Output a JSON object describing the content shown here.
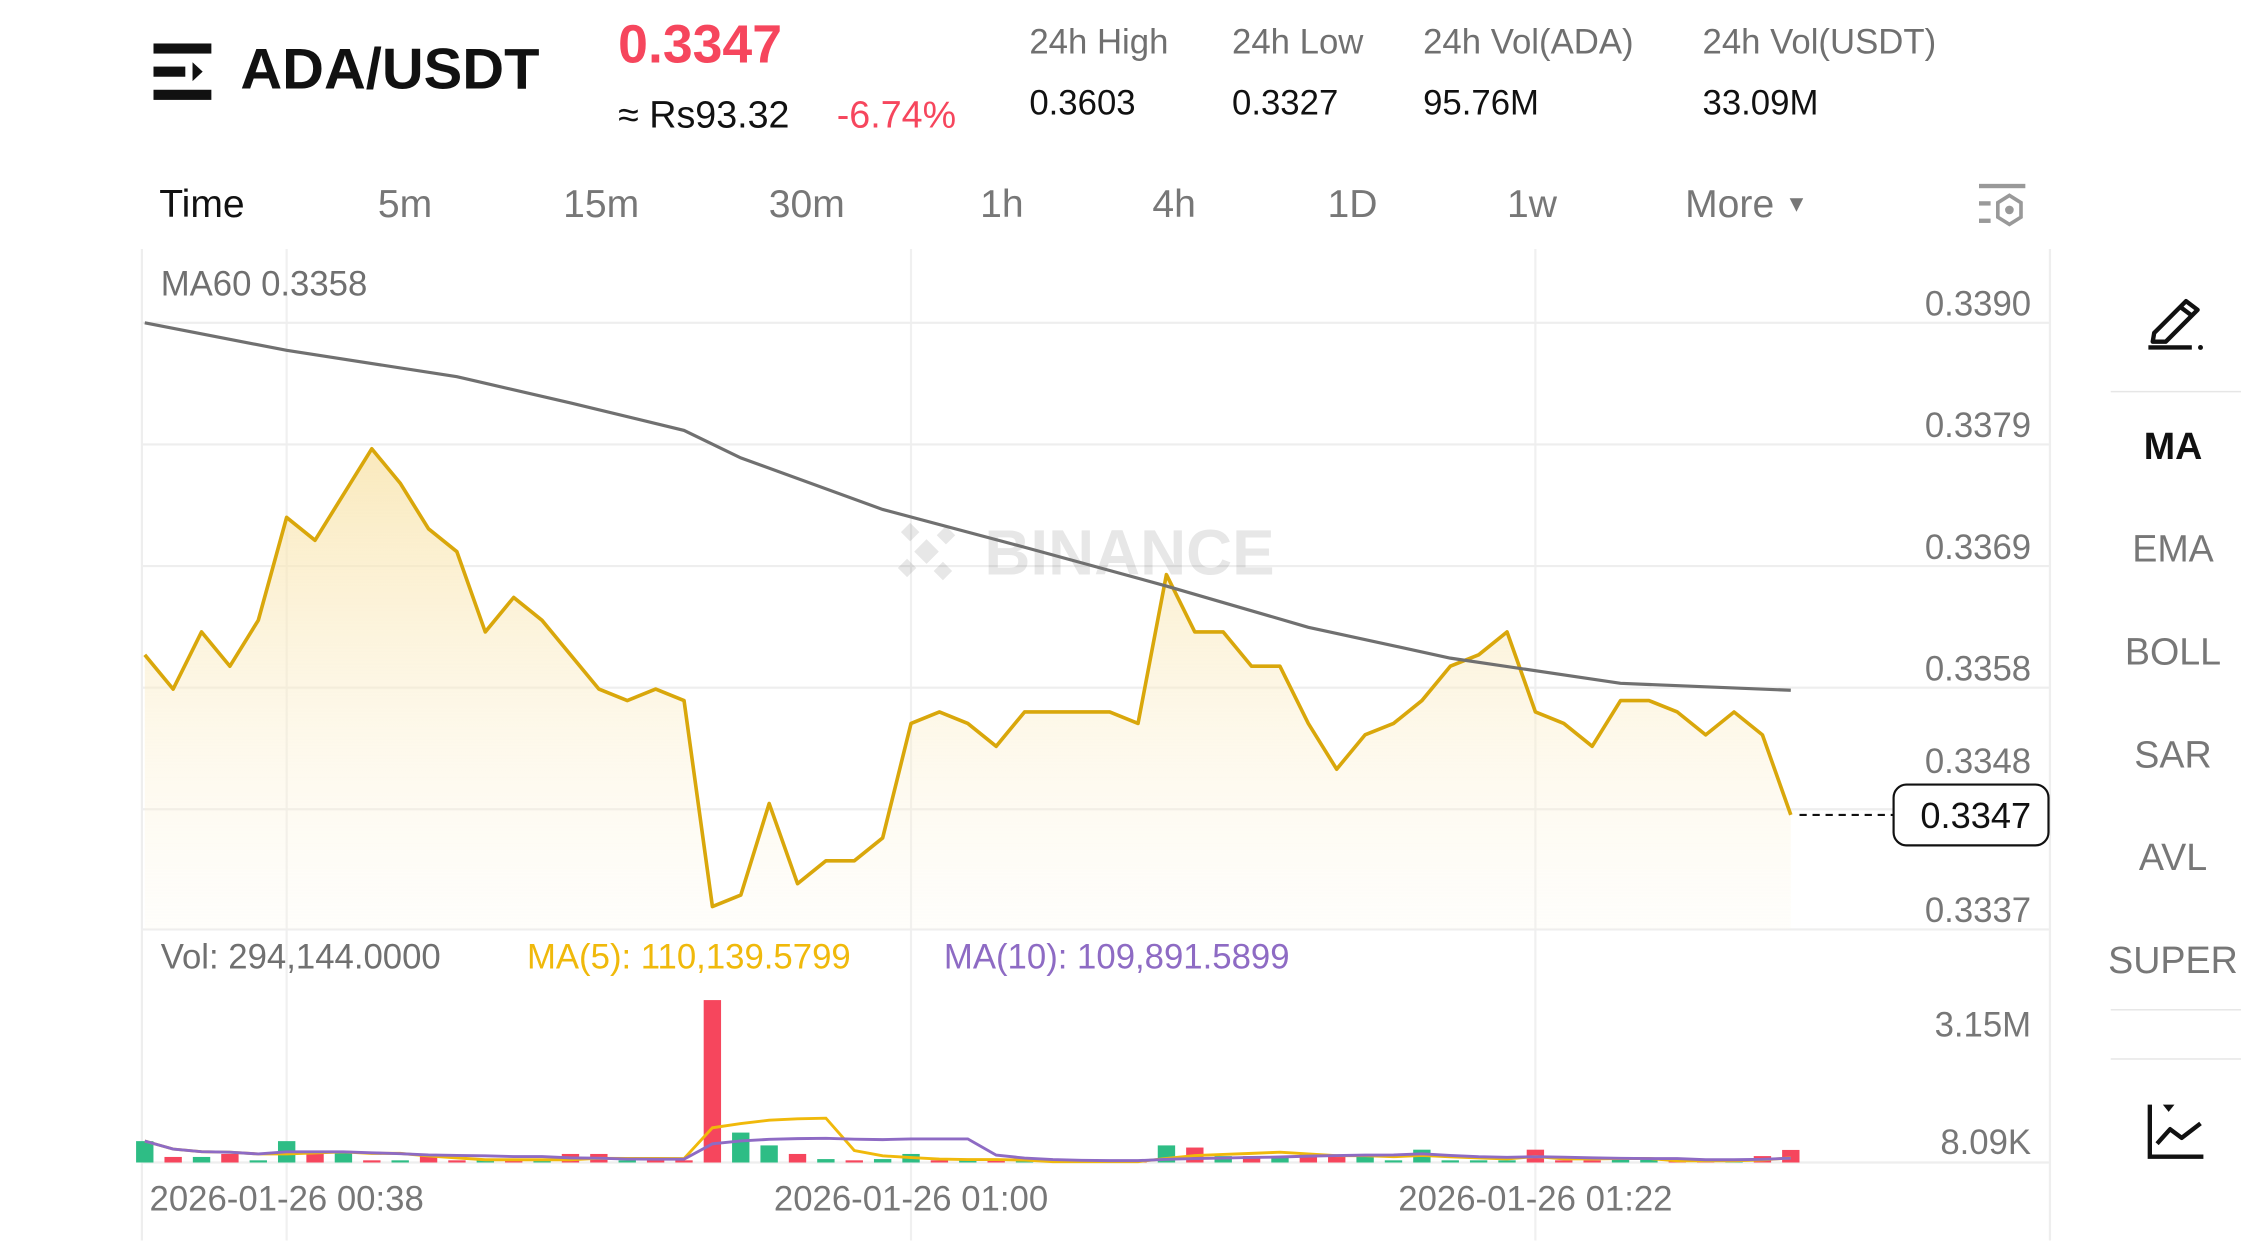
{
  "header": {
    "menu_icon": "menu-arrow-icon",
    "pair": "ADA/USDT",
    "last_price": "0.3347",
    "fiat_price": "≈ Rs93.32",
    "change_pct": "-6.74%",
    "stats": [
      {
        "label": "24h High",
        "value": "0.3603"
      },
      {
        "label": "24h Low",
        "value": "0.3327"
      },
      {
        "label": "24h Vol(ADA)",
        "value": "95.76M"
      },
      {
        "label": "24h Vol(USDT)",
        "value": "33.09M"
      }
    ]
  },
  "intervals": {
    "items": [
      "Time",
      "5m",
      "15m",
      "30m",
      "1h",
      "4h",
      "1D",
      "1w",
      "More"
    ],
    "active": "Time",
    "settings_icon": "chart-settings-icon"
  },
  "indicators": {
    "draw_icon": "pencil-icon",
    "items": [
      "MA",
      "EMA",
      "BOLL",
      "SAR",
      "AVL",
      "SUPER"
    ],
    "active": "MA",
    "bottom_icon": "line-chart-icon"
  },
  "colors": {
    "accent_down": "#f6465d",
    "accent_up": "#2ebd85",
    "price_line": "#d9a70b",
    "ma60": "#707070",
    "ma5": "#f0b90b",
    "ma10": "#8e6bc4"
  },
  "watermark": "BINANCE",
  "chart_data": [
    {
      "type": "line",
      "legend": "MA60 0.3358",
      "y_ticks": [
        "0.3390",
        "0.3379",
        "0.3369",
        "0.3358",
        "0.3348",
        "0.3337"
      ],
      "ylim": [
        0.3337,
        0.339
      ],
      "current_price_label": "0.3347",
      "x_tick_labels": [
        "2026-01-26 00:38",
        "2026-01-26 01:00",
        "2026-01-26 01:22"
      ],
      "x_tick_index": [
        5,
        27,
        49
      ],
      "series": [
        {
          "name": "price",
          "values": [
            0.3361,
            0.3358,
            0.3363,
            0.336,
            0.3364,
            0.3373,
            0.3371,
            0.3375,
            0.3379,
            0.3376,
            0.3372,
            0.337,
            0.3363,
            0.3366,
            0.3364,
            0.3361,
            0.3358,
            0.3357,
            0.3358,
            0.3357,
            0.3339,
            0.334,
            0.3348,
            0.3341,
            0.3343,
            0.3343,
            0.3345,
            0.3355,
            0.3356,
            0.3355,
            0.3353,
            0.3356,
            0.3356,
            0.3356,
            0.3356,
            0.3355,
            0.3368,
            0.3363,
            0.3363,
            0.336,
            0.336,
            0.3355,
            0.3351,
            0.3354,
            0.3355,
            0.3357,
            0.336,
            0.3361,
            0.3363,
            0.3356,
            0.3355,
            0.3353,
            0.3357,
            0.3357,
            0.3356,
            0.3354,
            0.3356,
            0.3354,
            0.3347
          ]
        },
        {
          "name": "MA60",
          "index": [
            0,
            5,
            11,
            15,
            19,
            21,
            26,
            31,
            36,
            41,
            46,
            52,
            58
          ],
          "values": [
            0.339,
            0.33876,
            0.33853,
            0.3383,
            0.33806,
            0.33782,
            0.33737,
            0.33704,
            0.3367,
            0.33634,
            0.33607,
            0.33585,
            0.33579
          ]
        }
      ]
    },
    {
      "type": "bar",
      "legend": {
        "vol": "Vol: 294,144.0000",
        "ma5": "MA(5): 110,139.5799",
        "ma10": "MA(10): 109,891.5899"
      },
      "y_ticks": [
        "3.15M",
        "8.09K"
      ],
      "volumes_k": [
        500,
        130,
        130,
        200,
        40,
        500,
        250,
        250,
        30,
        30,
        200,
        30,
        30,
        30,
        30,
        200,
        200,
        20,
        20,
        20,
        3800,
        700,
        400,
        200,
        80,
        20,
        80,
        200,
        20,
        20,
        20,
        20,
        20,
        20,
        20,
        20,
        400,
        350,
        150,
        150,
        150,
        200,
        150,
        150,
        30,
        300,
        30,
        30,
        30,
        300,
        30,
        30,
        60,
        60,
        30,
        30,
        30,
        150,
        294
      ],
      "direction": [
        "up",
        "down",
        "up",
        "down",
        "up",
        "up",
        "down",
        "up",
        "down",
        "up",
        "down",
        "down",
        "up",
        "down",
        "up",
        "down",
        "down",
        "up",
        "down",
        "down",
        "down",
        "up",
        "up",
        "down",
        "up",
        "down",
        "up",
        "up",
        "down",
        "up",
        "down",
        "up",
        "up",
        "up",
        "up",
        "down",
        "up",
        "down",
        "up",
        "down",
        "up",
        "down",
        "down",
        "up",
        "up",
        "up",
        "up",
        "up",
        "up",
        "down",
        "down",
        "down",
        "up",
        "up",
        "down",
        "down",
        "up",
        "down",
        "down"
      ]
    }
  ]
}
